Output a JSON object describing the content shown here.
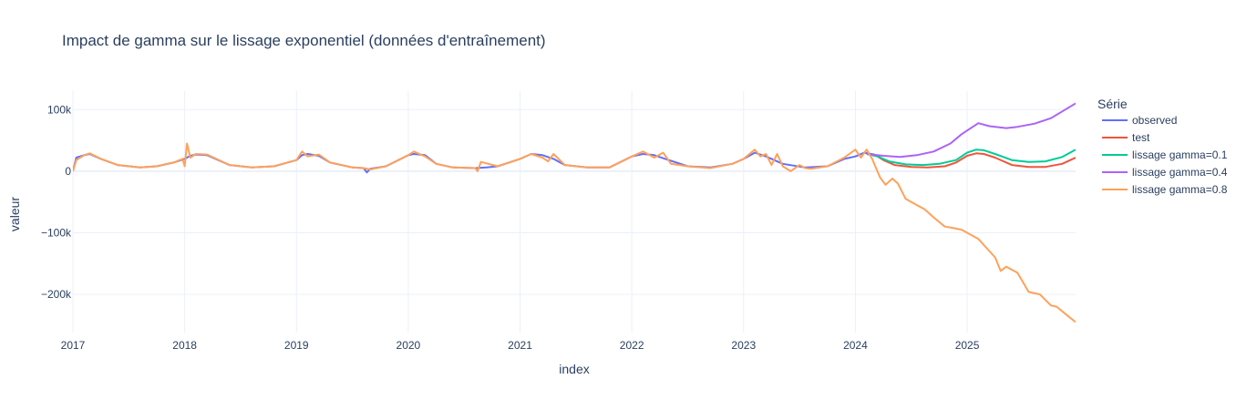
{
  "chart_data": {
    "type": "line",
    "title": "Impact de gamma sur le lissage exponentiel (données d'entraînement)",
    "xlabel": "index",
    "ylabel": "valeur",
    "x_ticks": [
      "2017",
      "2018",
      "2019",
      "2020",
      "2021",
      "2022",
      "2023",
      "2024",
      "2025"
    ],
    "y_ticks": [
      {
        "value": 100000,
        "label": "100k"
      },
      {
        "value": 0,
        "label": "0"
      },
      {
        "value": -100000,
        "label": "−100k"
      },
      {
        "value": -200000,
        "label": "−200k"
      }
    ],
    "xlim": [
      2017.0,
      2025.97
    ],
    "ylim": [
      -262000,
      130000
    ],
    "grid": true,
    "legend": {
      "title": "Série",
      "placement": "right"
    },
    "series": [
      {
        "name": "observed",
        "color": "#636efa",
        "x": [
          2017.0,
          2017.03,
          2017.1,
          2017.15,
          2017.25,
          2017.4,
          2017.6,
          2017.75,
          2017.9,
          2018.0,
          2018.05,
          2018.1,
          2018.2,
          2018.4,
          2018.6,
          2018.8,
          2019.0,
          2019.05,
          2019.1,
          2019.2,
          2019.3,
          2019.5,
          2019.6,
          2019.63,
          2019.66,
          2019.8,
          2020.0,
          2020.05,
          2020.15,
          2020.25,
          2020.4,
          2020.6,
          2020.7,
          2020.8,
          2021.0,
          2021.1,
          2021.2,
          2021.3,
          2021.4,
          2021.6,
          2021.8,
          2022.0,
          2022.1,
          2022.2,
          2022.3,
          2022.5,
          2022.7,
          2022.9,
          2023.0,
          2023.1,
          2023.2,
          2023.35,
          2023.55,
          2023.75,
          2023.9,
          2024.0,
          2024.08,
          2024.17
        ],
        "y": [
          0,
          22000,
          26000,
          28000,
          20000,
          10000,
          6000,
          8000,
          14000,
          20000,
          25000,
          27000,
          26000,
          10000,
          6000,
          8000,
          18000,
          26000,
          28000,
          25000,
          14000,
          6000,
          5000,
          -2000,
          4000,
          8000,
          26000,
          28000,
          26000,
          12000,
          6000,
          5000,
          6000,
          8000,
          20000,
          28000,
          26000,
          20000,
          10000,
          6000,
          6000,
          24000,
          28000,
          26000,
          20000,
          8000,
          6000,
          12000,
          20000,
          30000,
          24000,
          12000,
          6000,
          8000,
          20000,
          24000,
          30000,
          27000
        ]
      },
      {
        "name": "test",
        "color": "#ef553b",
        "x": [
          2024.17,
          2024.25,
          2024.35,
          2024.5,
          2024.65,
          2024.8,
          2024.9,
          2025.0,
          2025.08,
          2025.15,
          2025.25,
          2025.4,
          2025.55,
          2025.7,
          2025.85,
          2025.97
        ],
        "y": [
          27000,
          18000,
          10000,
          7000,
          6000,
          8000,
          14000,
          25000,
          29000,
          28000,
          22000,
          10000,
          7000,
          7000,
          12000,
          22000
        ]
      },
      {
        "name": "lissage gamma=0.1",
        "color": "#00cc96",
        "x": [
          2024.1,
          2024.2,
          2024.3,
          2024.45,
          2024.6,
          2024.75,
          2024.9,
          2025.0,
          2025.08,
          2025.15,
          2025.25,
          2025.4,
          2025.55,
          2025.7,
          2025.85,
          2025.97
        ],
        "y": [
          28000,
          24000,
          16000,
          11000,
          10000,
          12000,
          18000,
          30000,
          35000,
          34000,
          28000,
          18000,
          15000,
          16000,
          23000,
          35000
        ]
      },
      {
        "name": "lissage gamma=0.4",
        "color": "#ab63fa",
        "x": [
          2024.1,
          2024.25,
          2024.4,
          2024.55,
          2024.7,
          2024.85,
          2024.95,
          2025.05,
          2025.1,
          2025.2,
          2025.35,
          2025.45,
          2025.6,
          2025.75,
          2025.85,
          2025.97
        ],
        "y": [
          28000,
          25000,
          23000,
          26000,
          32000,
          45000,
          60000,
          72000,
          78000,
          73000,
          70000,
          72000,
          77000,
          86000,
          97000,
          110000
        ]
      },
      {
        "name": "lissage gamma=0.8",
        "color": "#ffa15a",
        "x": [
          2017.0,
          2017.03,
          2017.1,
          2017.15,
          2017.25,
          2017.4,
          2017.6,
          2017.75,
          2017.9,
          2017.98,
          2018.0,
          2018.02,
          2018.05,
          2018.1,
          2018.2,
          2018.4,
          2018.6,
          2018.8,
          2019.0,
          2019.05,
          2019.1,
          2019.2,
          2019.3,
          2019.5,
          2019.6,
          2019.66,
          2019.8,
          2020.0,
          2020.05,
          2020.15,
          2020.25,
          2020.4,
          2020.6,
          2020.62,
          2020.65,
          2020.8,
          2021.0,
          2021.1,
          2021.2,
          2021.25,
          2021.3,
          2021.4,
          2021.6,
          2021.8,
          2022.0,
          2022.1,
          2022.2,
          2022.28,
          2022.35,
          2022.5,
          2022.7,
          2022.9,
          2023.0,
          2023.1,
          2023.15,
          2023.2,
          2023.25,
          2023.3,
          2023.35,
          2023.42,
          2023.5,
          2023.55,
          2023.6,
          2023.75,
          2023.9,
          2024.0,
          2024.05,
          2024.1,
          2024.15,
          2024.22,
          2024.27,
          2024.33,
          2024.38,
          2024.45,
          2024.55,
          2024.62,
          2024.7,
          2024.8,
          2024.87,
          2024.95,
          2025.05,
          2025.1,
          2025.15,
          2025.25,
          2025.3,
          2025.35,
          2025.45,
          2025.55,
          2025.65,
          2025.75,
          2025.8,
          2025.9,
          2025.97
        ],
        "y": [
          0,
          18000,
          26000,
          29000,
          20000,
          10000,
          6000,
          8000,
          14000,
          20000,
          8000,
          45000,
          22000,
          28000,
          27000,
          10000,
          6000,
          8000,
          18000,
          32000,
          24000,
          27000,
          14000,
          6000,
          5000,
          3000,
          8000,
          26000,
          32000,
          24000,
          12000,
          6000,
          5000,
          0,
          15000,
          8000,
          20000,
          28000,
          22000,
          16000,
          28000,
          10000,
          6000,
          6000,
          24000,
          32000,
          22000,
          30000,
          12000,
          8000,
          5000,
          12000,
          20000,
          35000,
          24000,
          28000,
          10000,
          28000,
          8000,
          0,
          10000,
          5000,
          4000,
          8000,
          22000,
          35000,
          22000,
          35000,
          20000,
          -10000,
          -22000,
          -12000,
          -20000,
          -45000,
          -55000,
          -62000,
          -75000,
          -90000,
          -92000,
          -95000,
          -105000,
          -110000,
          -120000,
          -140000,
          -162000,
          -155000,
          -165000,
          -196000,
          -200000,
          -218000,
          -220000,
          -235000,
          -245000
        ]
      }
    ]
  }
}
